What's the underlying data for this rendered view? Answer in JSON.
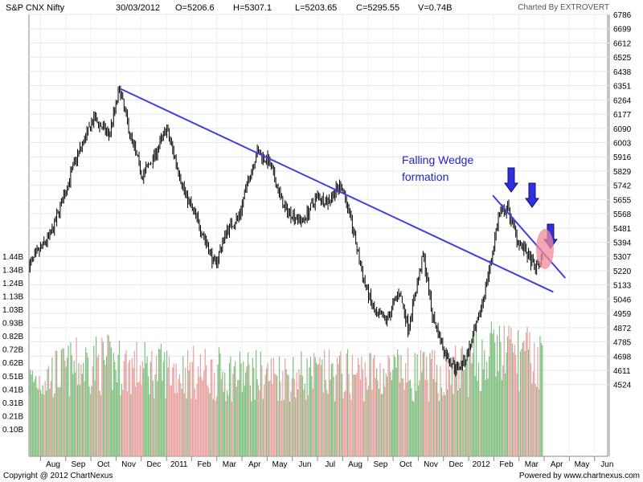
{
  "header": {
    "symbol": "S&P CNX Nifty",
    "date": "30/03/2012",
    "open": "O=5206.6",
    "high": "H=5307.1",
    "low": "L=5203.65",
    "close": "C=5295.55",
    "volume": "V=0.74B",
    "charted_by": "Charted By EXTROVERT"
  },
  "footer": {
    "copyright": "Copyright @ 2012 ChartNexus",
    "powered": "Powered by www.chartnexus.com"
  },
  "chart_data": {
    "type": "candlestick",
    "price_axis": {
      "ticks": [
        "6786",
        "6699",
        "6612",
        "6525",
        "6438",
        "6351",
        "6264",
        "6177",
        "6090",
        "6003",
        "5916",
        "5829",
        "5742",
        "5655",
        "5568",
        "5481",
        "5394",
        "5307",
        "5220",
        "5133",
        "5046",
        "4959",
        "4872",
        "4785",
        "4698",
        "4611",
        "4524"
      ],
      "range": [
        4437,
        6786
      ]
    },
    "volume_axis": {
      "ticks": [
        "1.44B",
        "1.34B",
        "1.24B",
        "1.13B",
        "1.03B",
        "0.93B",
        "0.82B",
        "0.72B",
        "0.62B",
        "0.51B",
        "0.41B",
        "0.31B",
        "0.21B",
        "0.10B"
      ],
      "range": [
        0,
        1.44
      ]
    },
    "x_ticks": [
      "Aug",
      "Sep",
      "Oct",
      "Nov",
      "Dec",
      "2011",
      "Feb",
      "Mar",
      "Apr",
      "May",
      "Jun",
      "Jul",
      "Aug",
      "Sep",
      "Oct",
      "Nov",
      "Dec",
      "2012",
      "Feb",
      "Mar",
      "Apr",
      "May",
      "Jun"
    ],
    "price_path": [
      [
        2010.545,
        5250
      ],
      [
        2010.62,
        5450
      ],
      [
        2010.7,
        5900
      ],
      [
        2010.76,
        6150
      ],
      [
        2010.81,
        6050
      ],
      [
        2010.845,
        6330
      ],
      [
        2010.88,
        6050
      ],
      [
        2010.92,
        5800
      ],
      [
        2010.96,
        5920
      ],
      [
        2011.0,
        6090
      ],
      [
        2011.06,
        5700
      ],
      [
        2011.12,
        5450
      ],
      [
        2011.16,
        5250
      ],
      [
        2011.2,
        5470
      ],
      [
        2011.24,
        5550
      ],
      [
        2011.27,
        5770
      ],
      [
        2011.3,
        5950
      ],
      [
        2011.34,
        5880
      ],
      [
        2011.39,
        5600
      ],
      [
        2011.45,
        5520
      ],
      [
        2011.5,
        5680
      ],
      [
        2011.53,
        5640
      ],
      [
        2011.58,
        5750
      ],
      [
        2011.62,
        5450
      ],
      [
        2011.65,
        5180
      ],
      [
        2011.69,
        4950
      ],
      [
        2011.73,
        4920
      ],
      [
        2011.77,
        5100
      ],
      [
        2011.8,
        4870
      ],
      [
        2011.85,
        5320
      ],
      [
        2011.88,
        4950
      ],
      [
        2011.92,
        4720
      ],
      [
        2011.96,
        4620
      ],
      [
        2011.99,
        4680
      ],
      [
        2012.03,
        4900
      ],
      [
        2012.07,
        5240
      ],
      [
        2012.1,
        5560
      ],
      [
        2012.13,
        5600
      ],
      [
        2012.16,
        5420
      ],
      [
        2012.19,
        5330
      ],
      [
        2012.22,
        5230
      ],
      [
        2012.245,
        5300
      ]
    ],
    "volume_levels": [
      [
        2010.545,
        0.5
      ],
      [
        2010.75,
        0.66
      ],
      [
        2010.95,
        0.6
      ],
      [
        2011.2,
        0.56
      ],
      [
        2011.5,
        0.55
      ],
      [
        2011.7,
        0.57
      ],
      [
        2011.9,
        0.55
      ],
      [
        2012.0,
        0.62
      ],
      [
        2012.1,
        0.76
      ],
      [
        2012.245,
        0.66
      ]
    ],
    "trendlines": [
      {
        "from": [
          2010.85,
          6330
        ],
        "to": [
          2012.28,
          5090
        ]
      },
      {
        "from": [
          2012.08,
          5680
        ],
        "to": [
          2012.32,
          5175
        ]
      }
    ],
    "annotation": "Falling Wedge\nformation",
    "markers": [
      "down-arrow",
      "down-arrow",
      "down-arrow",
      "highlight-ellipse"
    ],
    "colors": {
      "candle": "#000000",
      "trendline": "#4040e0",
      "arrow": "#3030e0",
      "ellipse": "#f28a9a",
      "volume_up": "#7fbf7f",
      "volume_down": "#e8a0a0",
      "annotation": "#2222cc"
    }
  }
}
